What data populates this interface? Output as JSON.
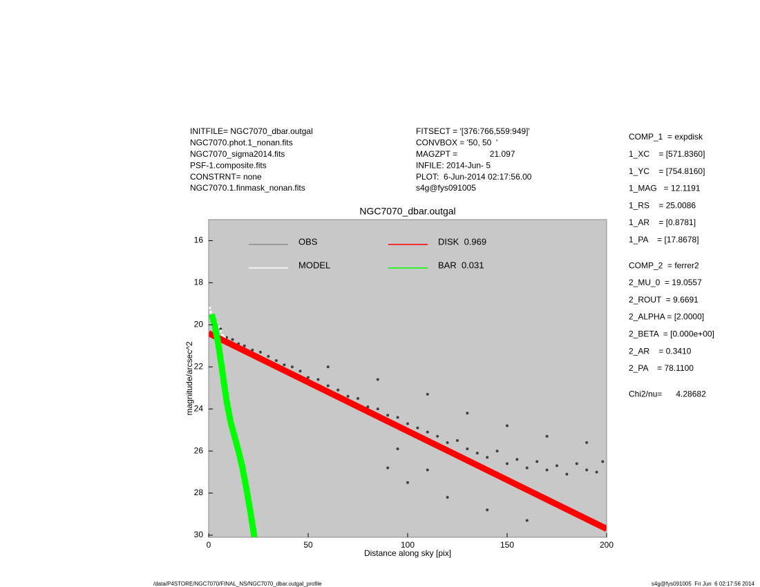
{
  "header": {
    "left": [
      "INITFILE= NGC7070_dbar.outgal",
      "NGC7070.phot.1_nonan.fits",
      "NGC7070_sigma2014.fits",
      "PSF-1.composite.fits",
      "CONSTRNT= none",
      "NGC7070.1.finmask_nonan.fits"
    ],
    "middle": [
      "FITSECT = '[376:766,559:949]'",
      "CONVBOX = '50, 50  '",
      "MAGZPT =              21.097",
      "INFILE: 2014-Jun- 5",
      "PLOT:  6-Jun-2014 02:17:56.00",
      "s4g@fys091005"
    ]
  },
  "params": [
    [
      "COMP_1  = expdisk",
      "1_XC    = [571.8360]",
      "1_YC    = [754.8160]",
      "1_MAG   = 12.1191",
      "1_RS    = 25.0086",
      "1_AR    = [0.8781]",
      "1_PA    = [17.8678]"
    ],
    [
      "COMP_2  = ferrer2",
      "2_MU_0  = 19.0557",
      "2_ROUT  = 9.6691",
      "2_ALPHA = [2.0000]",
      "2_BETA  = [0.000e+00]",
      "2_AR    = 0.3410",
      "2_PA    = 78.1100"
    ],
    [
      "Chi2/nu=      4.28682"
    ]
  ],
  "footer": {
    "left": "/data/P4STORE/NGC7070/FINAL_NS/NGC7070_dbar.outgal_profile",
    "right": "s4g@fys091005  Fri Jun  6 02:17:56 2014"
  },
  "chart_data": {
    "type": "scatter",
    "title": "NGC7070_dbar.outgal",
    "x_label": "Distance along sky [pix]",
    "y_label": "magnitude/arcsec^2",
    "xlim": [
      0,
      200
    ],
    "ylim": [
      30.1,
      15
    ],
    "xticks": [
      0,
      50,
      100,
      150,
      200
    ],
    "yticks": [
      16,
      18,
      20,
      22,
      24,
      26,
      28,
      30
    ],
    "background": "#c8c8c8",
    "series": [
      {
        "name": "OBS",
        "color": "#404040",
        "legend_color": "#8c8c8c",
        "mode": "markers",
        "x": [
          3,
          6,
          9,
          12,
          15,
          18,
          22,
          26,
          30,
          34,
          38,
          42,
          46,
          50,
          55,
          60,
          65,
          70,
          75,
          80,
          85,
          90,
          95,
          100,
          105,
          110,
          115,
          120,
          125,
          130,
          135,
          140,
          145,
          150,
          155,
          160,
          165,
          170,
          175,
          180,
          185,
          190,
          195,
          198,
          90,
          100,
          120,
          140,
          160,
          95,
          110,
          110,
          130,
          150,
          170,
          190,
          85,
          60
        ],
        "values": [
          19.8,
          20.2,
          20.6,
          20.7,
          20.9,
          21.0,
          21.2,
          21.3,
          21.5,
          21.7,
          21.9,
          22.0,
          22.2,
          22.5,
          22.6,
          22.9,
          23.1,
          23.4,
          23.5,
          23.9,
          24.0,
          24.3,
          24.4,
          24.7,
          24.9,
          25.1,
          25.3,
          25.6,
          25.5,
          25.9,
          26.1,
          26.3,
          26.0,
          26.6,
          26.4,
          26.8,
          26.5,
          26.9,
          26.7,
          27.1,
          26.6,
          26.9,
          27.0,
          26.5,
          26.8,
          27.5,
          28.2,
          28.8,
          29.3,
          25.9,
          26.9,
          23.3,
          24.2,
          24.8,
          25.3,
          25.6,
          22.6,
          22.0
        ]
      },
      {
        "name": "MODEL",
        "color": "#ffffff",
        "legend_color": "#ffffff",
        "mode": "markers",
        "x": [
          0.5,
          1,
          2,
          3,
          4,
          5,
          6,
          7,
          8
        ],
        "values": [
          19.2,
          19.4,
          19.6,
          19.8,
          19.9,
          20.1,
          20.3,
          20.5,
          20.6
        ]
      },
      {
        "name": "DISK  0.969",
        "color": "#ff0000",
        "legend_color": "#ff0000",
        "mode": "lines",
        "x": [
          0,
          200
        ],
        "values": [
          20.4,
          29.7
        ]
      },
      {
        "name": "BAR  0.031",
        "color": "#00ff00",
        "legend_color": "#00ff00",
        "mode": "lines",
        "x": [
          1.5,
          3,
          5,
          7,
          9,
          11,
          13,
          15,
          17,
          19,
          21,
          23
        ],
        "values": [
          19.5,
          20.0,
          21.0,
          22.3,
          23.6,
          24.6,
          25.3,
          26.0,
          26.8,
          27.8,
          28.9,
          30.1
        ]
      }
    ]
  }
}
